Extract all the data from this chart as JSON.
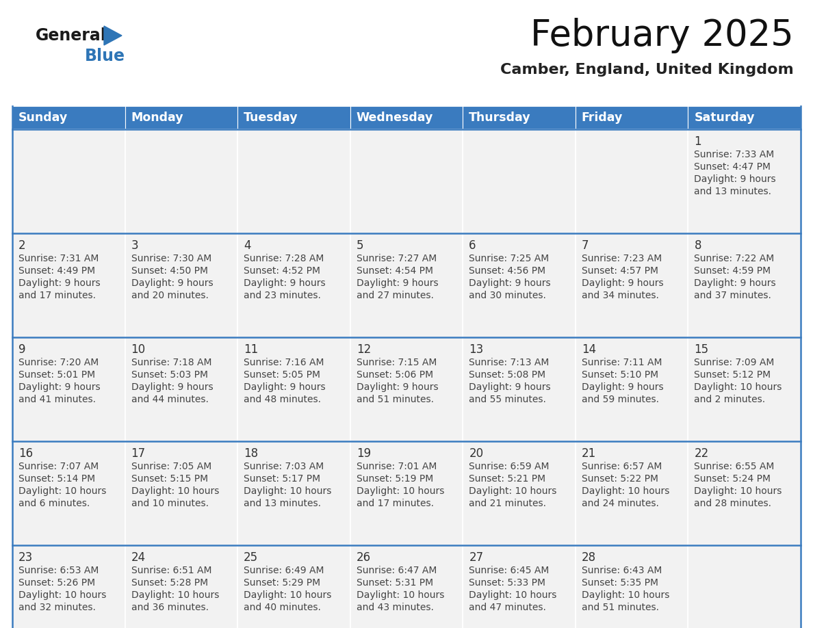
{
  "title": "February 2025",
  "subtitle": "Camber, England, United Kingdom",
  "days_of_week": [
    "Sunday",
    "Monday",
    "Tuesday",
    "Wednesday",
    "Thursday",
    "Friday",
    "Saturday"
  ],
  "header_bg": "#3A7BBF",
  "header_text": "#FFFFFF",
  "cell_bg": "#F2F2F2",
  "separator_color": "#3A7BBF",
  "text_color": "#333333",
  "logo_general_color": "#1A1A1A",
  "logo_blue_color": "#2E75B6",
  "calendar_data": {
    "1": {
      "sunrise": "7:33 AM",
      "sunset": "4:47 PM",
      "daylight": "9 hours and 13 minutes."
    },
    "2": {
      "sunrise": "7:31 AM",
      "sunset": "4:49 PM",
      "daylight": "9 hours and 17 minutes."
    },
    "3": {
      "sunrise": "7:30 AM",
      "sunset": "4:50 PM",
      "daylight": "9 hours and 20 minutes."
    },
    "4": {
      "sunrise": "7:28 AM",
      "sunset": "4:52 PM",
      "daylight": "9 hours and 23 minutes."
    },
    "5": {
      "sunrise": "7:27 AM",
      "sunset": "4:54 PM",
      "daylight": "9 hours and 27 minutes."
    },
    "6": {
      "sunrise": "7:25 AM",
      "sunset": "4:56 PM",
      "daylight": "9 hours and 30 minutes."
    },
    "7": {
      "sunrise": "7:23 AM",
      "sunset": "4:57 PM",
      "daylight": "9 hours and 34 minutes."
    },
    "8": {
      "sunrise": "7:22 AM",
      "sunset": "4:59 PM",
      "daylight": "9 hours and 37 minutes."
    },
    "9": {
      "sunrise": "7:20 AM",
      "sunset": "5:01 PM",
      "daylight": "9 hours and 41 minutes."
    },
    "10": {
      "sunrise": "7:18 AM",
      "sunset": "5:03 PM",
      "daylight": "9 hours and 44 minutes."
    },
    "11": {
      "sunrise": "7:16 AM",
      "sunset": "5:05 PM",
      "daylight": "9 hours and 48 minutes."
    },
    "12": {
      "sunrise": "7:15 AM",
      "sunset": "5:06 PM",
      "daylight": "9 hours and 51 minutes."
    },
    "13": {
      "sunrise": "7:13 AM",
      "sunset": "5:08 PM",
      "daylight": "9 hours and 55 minutes."
    },
    "14": {
      "sunrise": "7:11 AM",
      "sunset": "5:10 PM",
      "daylight": "9 hours and 59 minutes."
    },
    "15": {
      "sunrise": "7:09 AM",
      "sunset": "5:12 PM",
      "daylight": "10 hours and 2 minutes."
    },
    "16": {
      "sunrise": "7:07 AM",
      "sunset": "5:14 PM",
      "daylight": "10 hours and 6 minutes."
    },
    "17": {
      "sunrise": "7:05 AM",
      "sunset": "5:15 PM",
      "daylight": "10 hours and 10 minutes."
    },
    "18": {
      "sunrise": "7:03 AM",
      "sunset": "5:17 PM",
      "daylight": "10 hours and 13 minutes."
    },
    "19": {
      "sunrise": "7:01 AM",
      "sunset": "5:19 PM",
      "daylight": "10 hours and 17 minutes."
    },
    "20": {
      "sunrise": "6:59 AM",
      "sunset": "5:21 PM",
      "daylight": "10 hours and 21 minutes."
    },
    "21": {
      "sunrise": "6:57 AM",
      "sunset": "5:22 PM",
      "daylight": "10 hours and 24 minutes."
    },
    "22": {
      "sunrise": "6:55 AM",
      "sunset": "5:24 PM",
      "daylight": "10 hours and 28 minutes."
    },
    "23": {
      "sunrise": "6:53 AM",
      "sunset": "5:26 PM",
      "daylight": "10 hours and 32 minutes."
    },
    "24": {
      "sunrise": "6:51 AM",
      "sunset": "5:28 PM",
      "daylight": "10 hours and 36 minutes."
    },
    "25": {
      "sunrise": "6:49 AM",
      "sunset": "5:29 PM",
      "daylight": "10 hours and 40 minutes."
    },
    "26": {
      "sunrise": "6:47 AM",
      "sunset": "5:31 PM",
      "daylight": "10 hours and 43 minutes."
    },
    "27": {
      "sunrise": "6:45 AM",
      "sunset": "5:33 PM",
      "daylight": "10 hours and 47 minutes."
    },
    "28": {
      "sunrise": "6:43 AM",
      "sunset": "5:35 PM",
      "daylight": "10 hours and 51 minutes."
    }
  },
  "weeks": [
    [
      null,
      null,
      null,
      null,
      null,
      null,
      1
    ],
    [
      2,
      3,
      4,
      5,
      6,
      7,
      8
    ],
    [
      9,
      10,
      11,
      12,
      13,
      14,
      15
    ],
    [
      16,
      17,
      18,
      19,
      20,
      21,
      22
    ],
    [
      23,
      24,
      25,
      26,
      27,
      28,
      null
    ]
  ],
  "figsize": [
    11.88,
    9.18
  ],
  "dpi": 100
}
